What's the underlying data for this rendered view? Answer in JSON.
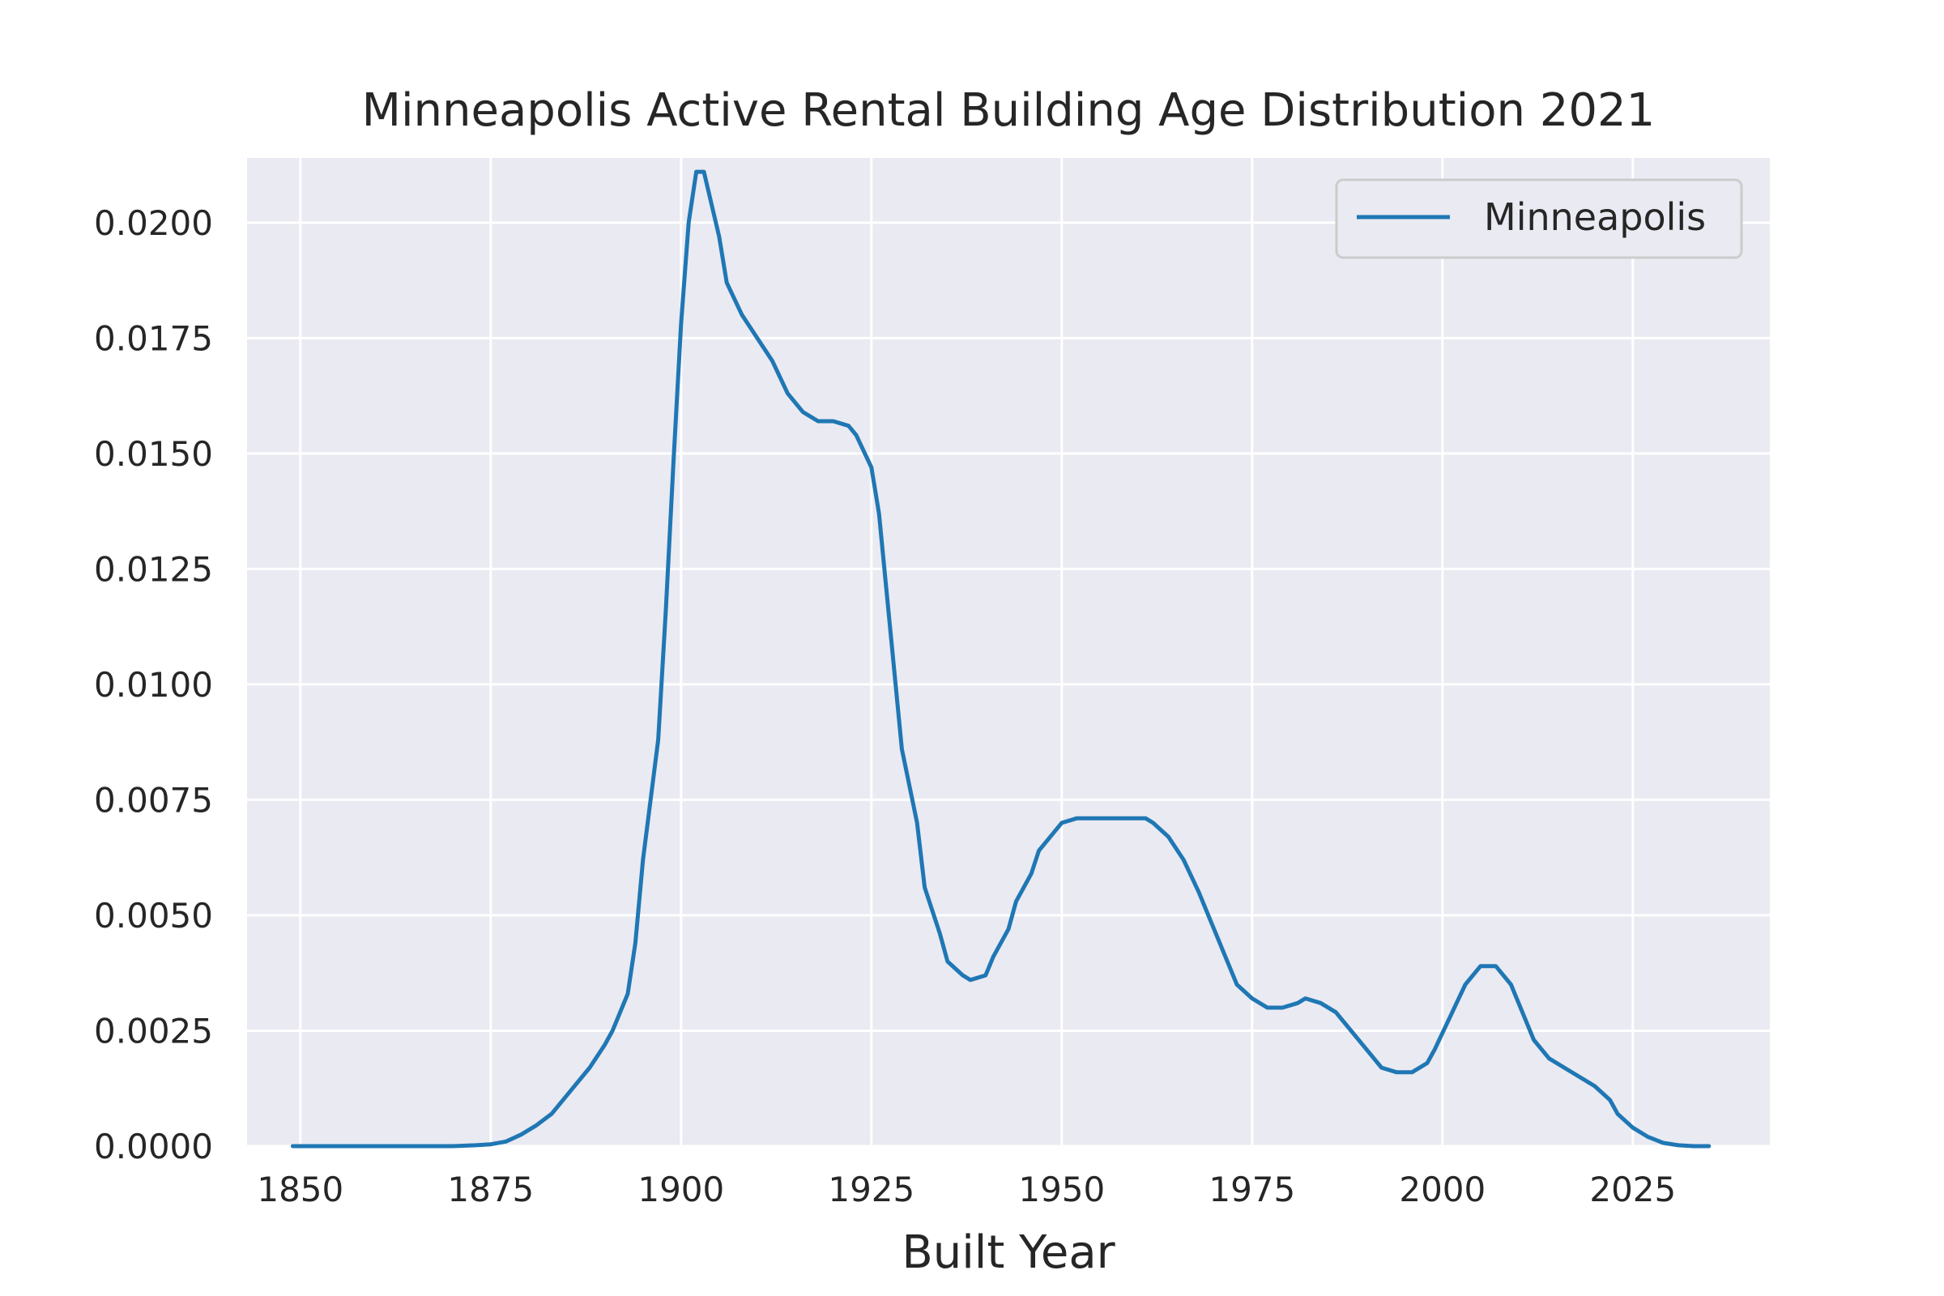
{
  "chart_data": {
    "type": "line",
    "title": "Minneapolis Active Rental Building Age Distribution 2021",
    "xlabel": "Built Year",
    "ylabel": "",
    "xlim": [
      1843,
      2043
    ],
    "ylim": [
      0,
      0.0214
    ],
    "xticks": [
      1850,
      1875,
      1900,
      1925,
      1950,
      1975,
      2000,
      2025
    ],
    "xtick_labels": [
      "1850",
      "1875",
      "1900",
      "1925",
      "1950",
      "1975",
      "2000",
      "2025"
    ],
    "yticks": [
      0,
      0.0025,
      0.005,
      0.0075,
      0.01,
      0.0125,
      0.015,
      0.0175,
      0.02
    ],
    "ytick_labels": [
      "0.0000",
      "0.0025",
      "0.0050",
      "0.0075",
      "0.0100",
      "0.0125",
      "0.0150",
      "0.0175",
      "0.0200"
    ],
    "grid": true,
    "legend_position": "top-right",
    "colors": {
      "background": "#eaeaf2",
      "grid": "#ffffff",
      "series": "#1f77b4"
    },
    "series": [
      {
        "name": "Minneapolis",
        "x": [
          1849,
          1855,
          1860,
          1865,
          1870,
          1873,
          1875,
          1877,
          1879,
          1881,
          1883,
          1885,
          1887,
          1888,
          1890,
          1891,
          1893,
          1894,
          1895,
          1897,
          1898,
          1899,
          1900,
          1901,
          1902,
          1903,
          1905,
          1906,
          1908,
          1910,
          1912,
          1914,
          1916,
          1918,
          1920,
          1922,
          1923,
          1925,
          1926,
          1927,
          1928,
          1929,
          1931,
          1932,
          1934,
          1935,
          1937,
          1938,
          1940,
          1941,
          1943,
          1944,
          1946,
          1947,
          1949,
          1950,
          1952,
          1953,
          1955,
          1957,
          1959,
          1961,
          1962,
          1964,
          1966,
          1968,
          1970,
          1972,
          1973,
          1975,
          1977,
          1979,
          1981,
          1982,
          1984,
          1986,
          1988,
          1990,
          1992,
          1994,
          1996,
          1998,
          1999,
          2001,
          2003,
          2005,
          2007,
          2009,
          2011,
          2012,
          2014,
          2016,
          2018,
          2020,
          2022,
          2023,
          2025,
          2027,
          2029,
          2031,
          2033,
          2035
        ],
        "values": [
          0.0,
          0.0,
          0.0,
          0.0,
          0.0,
          2e-05,
          4e-05,
          0.0001,
          0.00025,
          0.00045,
          0.0007,
          0.0011,
          0.0015,
          0.0017,
          0.0022,
          0.0025,
          0.0033,
          0.0044,
          0.0062,
          0.0088,
          0.0116,
          0.0148,
          0.0178,
          0.02,
          0.0211,
          0.0211,
          0.0197,
          0.0187,
          0.018,
          0.0175,
          0.017,
          0.0163,
          0.0159,
          0.0157,
          0.0157,
          0.0156,
          0.0154,
          0.0147,
          0.0137,
          0.012,
          0.0103,
          0.0086,
          0.007,
          0.0056,
          0.0046,
          0.004,
          0.0037,
          0.0036,
          0.0037,
          0.0041,
          0.0047,
          0.0053,
          0.0059,
          0.0064,
          0.0068,
          0.007,
          0.0071,
          0.0071,
          0.0071,
          0.0071,
          0.0071,
          0.0071,
          0.007,
          0.0067,
          0.0062,
          0.0055,
          0.0047,
          0.0039,
          0.0035,
          0.0032,
          0.003,
          0.003,
          0.0031,
          0.0032,
          0.0031,
          0.0029,
          0.0025,
          0.0021,
          0.0017,
          0.0016,
          0.0016,
          0.0018,
          0.0021,
          0.0028,
          0.0035,
          0.0039,
          0.0039,
          0.0035,
          0.0027,
          0.0023,
          0.0019,
          0.0017,
          0.0015,
          0.0013,
          0.001,
          0.0007,
          0.0004,
          0.0002,
          7e-05,
          2e-05,
          0.0,
          0.0
        ]
      }
    ]
  }
}
